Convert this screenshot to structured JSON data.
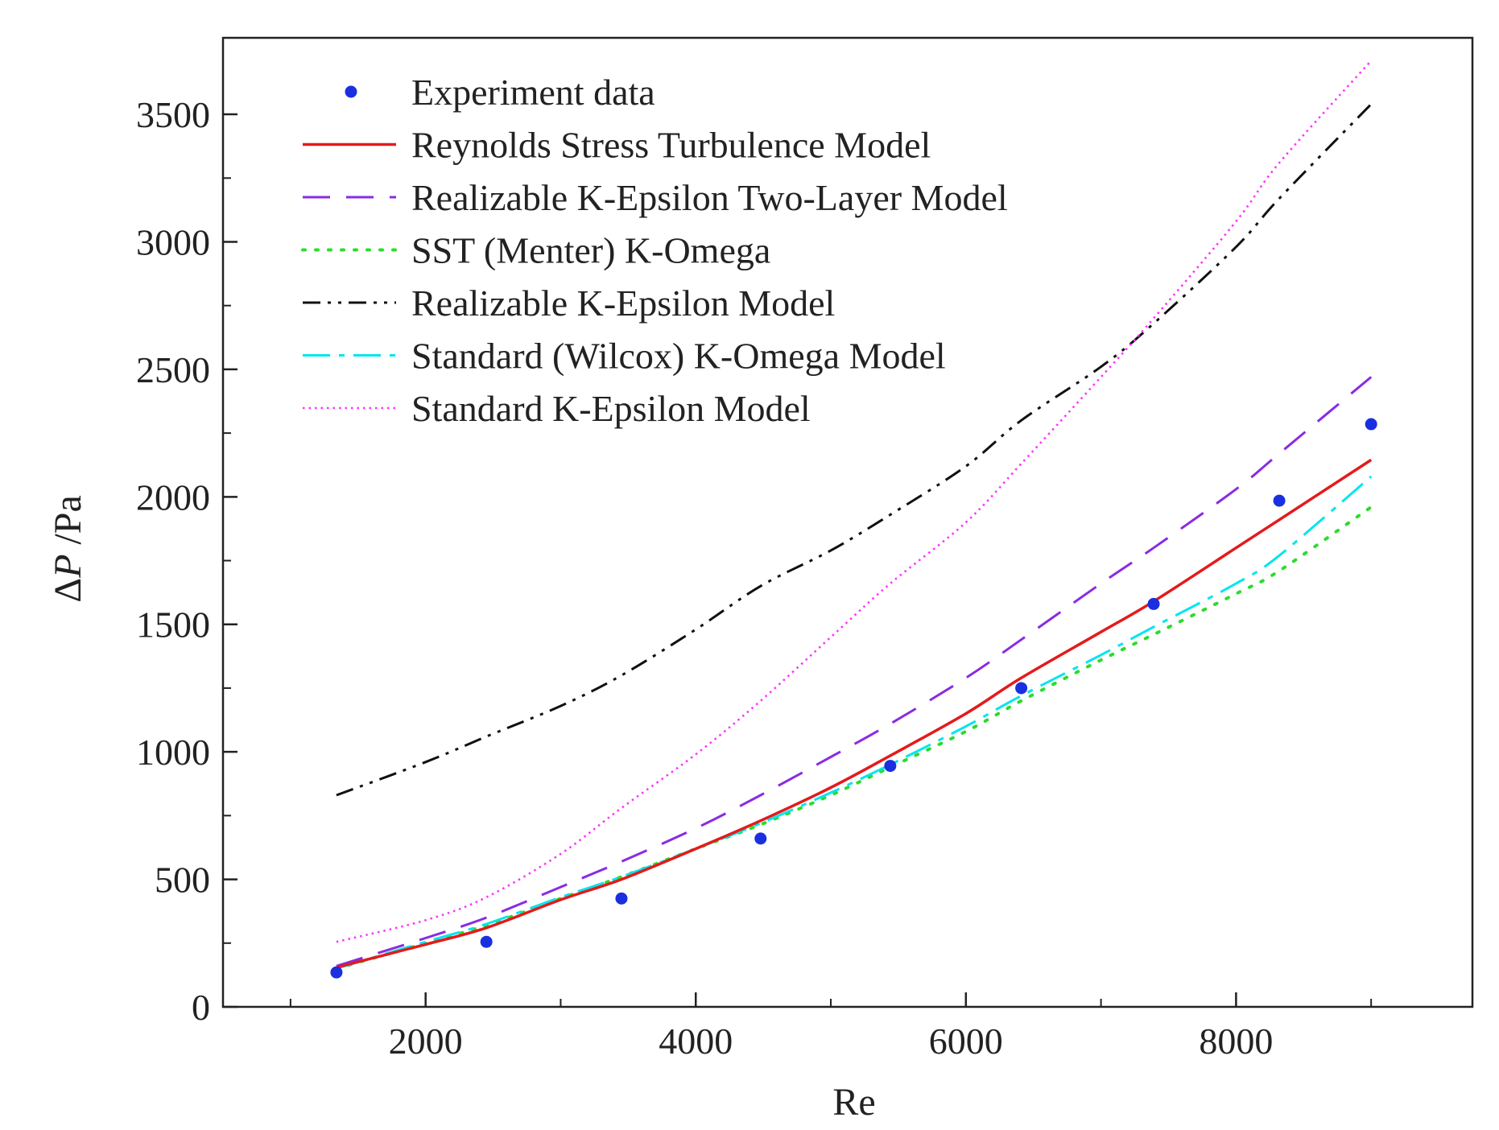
{
  "chart_data": {
    "type": "line",
    "title": "",
    "xlabel": "Re",
    "ylabel_delta": "Δ",
    "ylabel_var": "P",
    "ylabel_unit": " /Pa",
    "xlim": [
      500,
      9750
    ],
    "ylim": [
      0,
      3800
    ],
    "xticks": [
      2000,
      4000,
      6000,
      8000
    ],
    "xticks_minor": [
      1000,
      3000,
      5000,
      7000,
      9000
    ],
    "xtick_labels": [
      "2000",
      "4000",
      "6000",
      "8000"
    ],
    "yticks": [
      0,
      500,
      1000,
      1500,
      2000,
      2500,
      3000,
      3500
    ],
    "ytick_labels": [
      "0",
      "500",
      "1000",
      "1500",
      "2000",
      "2500",
      "3000",
      "3500"
    ],
    "legend_position": "top-left",
    "experiment": {
      "name": "Experiment data",
      "color": "#1a2fe0",
      "x": [
        1340,
        2450,
        3450,
        4480,
        5440,
        6410,
        7390,
        8320,
        9000
      ],
      "y": [
        135,
        255,
        425,
        660,
        945,
        1250,
        1580,
        1985,
        2285
      ]
    },
    "series": [
      {
        "name": "Reynolds Stress Turbulence Model",
        "color": "#e41a1c",
        "dash": "solid",
        "x": [
          1340,
          2000,
          2450,
          3000,
          3450,
          4000,
          4480,
          5000,
          5440,
          6000,
          6410,
          7000,
          7390,
          8000,
          8320,
          9000
        ],
        "y": [
          155,
          245,
          310,
          420,
          500,
          620,
          730,
          860,
          985,
          1150,
          1290,
          1470,
          1590,
          1800,
          1910,
          2145
        ]
      },
      {
        "name": "Realizable K-Epsilon Two-Layer Model",
        "color": "#8a2be2",
        "dash": "long-dash",
        "x": [
          1340,
          2000,
          2450,
          3000,
          3450,
          4000,
          4480,
          5000,
          5440,
          6000,
          6410,
          7000,
          7390,
          8000,
          8320,
          9000
        ],
        "y": [
          160,
          270,
          350,
          470,
          570,
          700,
          830,
          980,
          1110,
          1290,
          1440,
          1660,
          1800,
          2030,
          2170,
          2470
        ]
      },
      {
        "name": "SST (Menter) K-Omega",
        "color": "#2cdc2c",
        "dash": "dotted",
        "x": [
          1340,
          2000,
          2450,
          3000,
          3450,
          4000,
          4480,
          5000,
          5440,
          6000,
          6410,
          7000,
          7390,
          8000,
          8320,
          9000
        ],
        "y": [
          150,
          250,
          320,
          425,
          510,
          620,
          715,
          830,
          940,
          1080,
          1200,
          1360,
          1460,
          1620,
          1710,
          1960
        ]
      },
      {
        "name": "Realizable K-Epsilon Model",
        "color": "#111111",
        "dash": "dash-dot-dot",
        "x": [
          1340,
          2000,
          2450,
          3000,
          3450,
          4000,
          4480,
          5000,
          5440,
          6000,
          6410,
          7000,
          7390,
          8000,
          8320,
          9000
        ],
        "y": [
          830,
          960,
          1060,
          1180,
          1300,
          1480,
          1650,
          1790,
          1930,
          2120,
          2300,
          2510,
          2680,
          2980,
          3170,
          3540
        ]
      },
      {
        "name": "Standard (Wilcox) K-Omega Model",
        "color": "#00e5ee",
        "dash": "dash-dot",
        "x": [
          1340,
          2000,
          2450,
          3000,
          3450,
          4000,
          4480,
          5000,
          5440,
          6000,
          6410,
          7000,
          7390,
          8000,
          8320,
          9000
        ],
        "y": [
          150,
          255,
          325,
          430,
          510,
          620,
          720,
          840,
          950,
          1100,
          1220,
          1380,
          1490,
          1660,
          1770,
          2080
        ]
      },
      {
        "name": "Standard K-Epsilon Model",
        "color": "#ff33ff",
        "dash": "fine-dot",
        "x": [
          1340,
          2000,
          2450,
          3000,
          3450,
          4000,
          4480,
          5000,
          5440,
          6000,
          6410,
          7000,
          7390,
          8000,
          8320,
          9000
        ],
        "y": [
          255,
          340,
          430,
          600,
          780,
          990,
          1200,
          1450,
          1660,
          1900,
          2130,
          2470,
          2700,
          3080,
          3310,
          3710
        ]
      }
    ]
  }
}
